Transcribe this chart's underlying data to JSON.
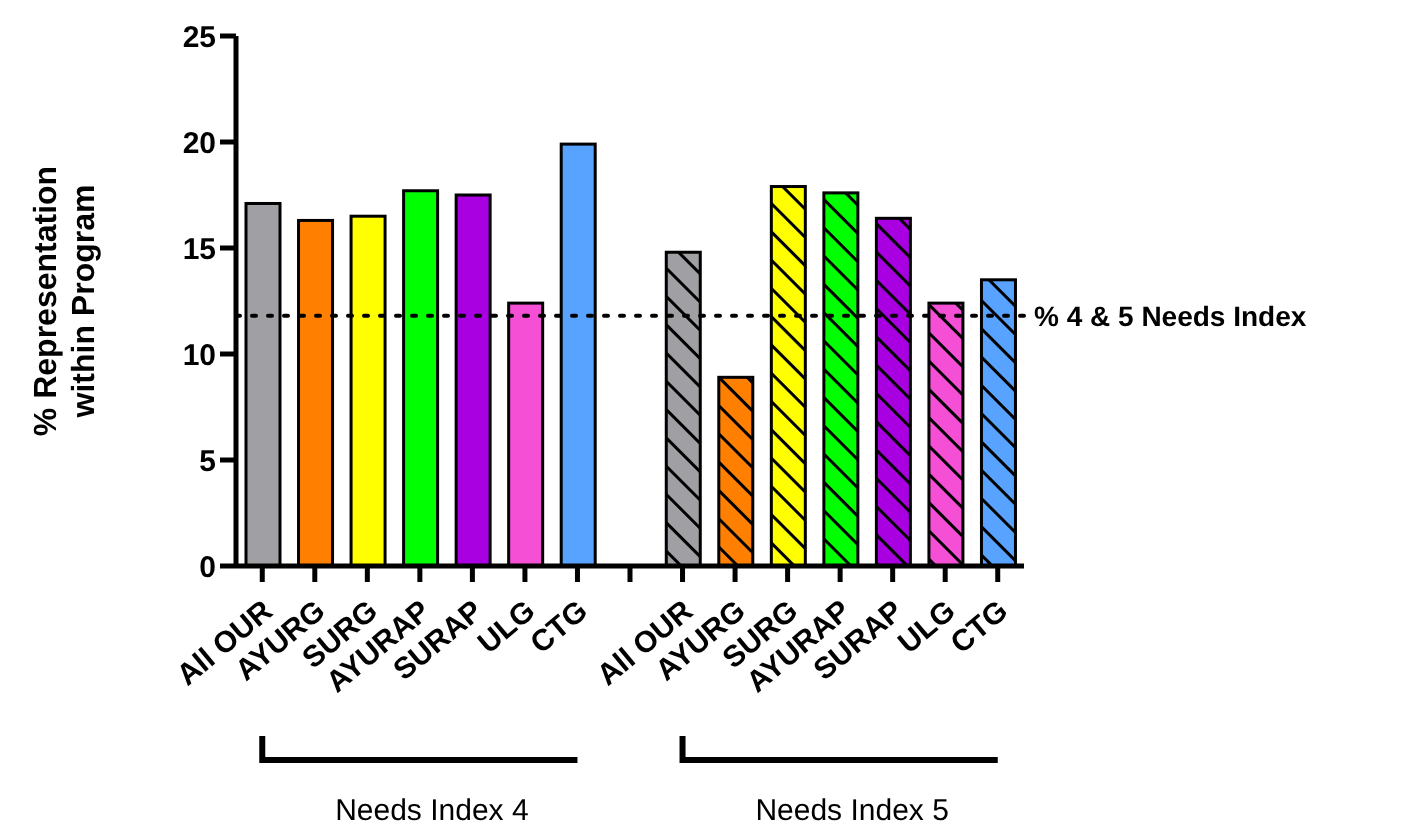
{
  "chart_data": {
    "type": "bar",
    "ylabel": "% Representation within Program",
    "categories": [
      "All OUR",
      "AYURG",
      "SURG",
      "AYURAP",
      "SURAP",
      "ULG",
      "CTG",
      null,
      "All OUR",
      "AYURG",
      "SURG",
      "AYURAP",
      "SURAP",
      "ULG",
      "CTG"
    ],
    "series": [
      {
        "colors": [
          "#a0a0a4",
          "#ff8000",
          "#ffff00",
          "#00ff00",
          "#a800e0",
          "#f54fd5",
          "#58a3ff",
          null,
          null,
          null,
          null,
          null,
          null,
          null,
          null
        ],
        "values": [
          17.1,
          16.3,
          16.5,
          17.7,
          17.5,
          12.4,
          19.9,
          null,
          null,
          null,
          null,
          null,
          null,
          null,
          null
        ]
      },
      {
        "colors": [
          null,
          null,
          null,
          null,
          null,
          null,
          null,
          null,
          "#a0a0a4",
          "#ff8000",
          "#ffff00",
          "#00ff00",
          "#a800e0",
          "#f54fd5",
          "#58a3ff"
        ],
        "values": [
          null,
          null,
          null,
          null,
          null,
          null,
          null,
          null,
          14.8,
          8.9,
          17.9,
          17.6,
          16.4,
          12.4,
          13.5
        ]
      }
    ],
    "ylim": [
      0,
      25
    ],
    "yticks": [
      0,
      5,
      10,
      15,
      20,
      25
    ],
    "ref_lines": [
      {
        "axis": "y",
        "value": 11.8,
        "label": "% 4 & 5 Needs Index",
        "line_style": "dotted"
      }
    ],
    "annotations": [
      "Needs Index 4",
      "Needs Index 5"
    ]
  }
}
